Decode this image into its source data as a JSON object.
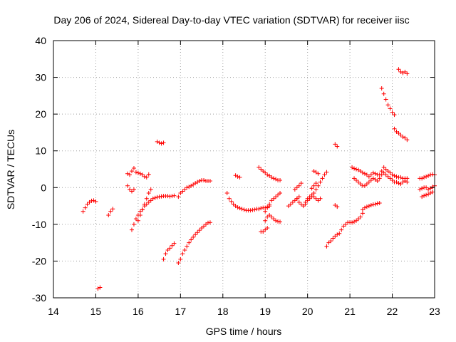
{
  "chart_data": {
    "type": "scatter",
    "title": "Day 206 of 2024, Sidereal Day-to-day VTEC variation (SDTVAR) for receiver iisc",
    "xlabel": "GPS time / hours",
    "ylabel": "SDTVAR / TECUs",
    "xlim": [
      14,
      23
    ],
    "ylim": [
      -30,
      40
    ],
    "xticks": [
      "14",
      "15",
      "16",
      "17",
      "18",
      "19",
      "20",
      "21",
      "22",
      "23"
    ],
    "yticks": [
      "-30",
      "-20",
      "-10",
      "0",
      "10",
      "20",
      "30",
      "40"
    ],
    "grid": true,
    "marker": "+",
    "color": "#ff0000",
    "segments": [
      {
        "x": [
          14.7,
          14.75,
          14.8,
          14.85,
          14.9,
          14.95,
          15.0
        ],
        "y": [
          -6.5,
          -5.5,
          -4.5,
          -4,
          -3.6,
          -3.5,
          -3.8
        ]
      },
      {
        "x": [
          15.05,
          15.1
        ],
        "y": [
          -27.5,
          -27.2
        ]
      },
      {
        "x": [
          15.3,
          15.35,
          15.4
        ],
        "y": [
          -7.5,
          -6.5,
          -5.8
        ]
      },
      {
        "x": [
          15.75,
          15.8,
          15.85,
          15.9
        ],
        "y": [
          3.8,
          3.5,
          4.5,
          5.3
        ]
      },
      {
        "x": [
          15.75,
          15.8,
          15.85,
          15.9
        ],
        "y": [
          0.5,
          -0.5,
          -1.0,
          -0.5
        ]
      },
      {
        "x": [
          15.85,
          15.9,
          15.95,
          16.0,
          16.05,
          16.1,
          16.15,
          16.2,
          16.25,
          16.3,
          16.35,
          16.4,
          16.45,
          16.5,
          16.55,
          16.6,
          16.65,
          16.7,
          16.75,
          16.8,
          16.85
        ],
        "y": [
          -11.5,
          -10,
          -8.5,
          -7.5,
          -6.5,
          -6,
          -5,
          -4.5,
          -4,
          -3.5,
          -3,
          -2.8,
          -2.6,
          -2.5,
          -2.4,
          -2.3,
          -2.3,
          -2.3,
          -2.4,
          -2.3,
          -2.2
        ]
      },
      {
        "x": [
          15.95,
          16.0,
          16.05,
          16.1,
          16.15,
          16.2,
          16.25
        ],
        "y": [
          4.2,
          4.0,
          3.8,
          3.5,
          3.0,
          2.8,
          3.6
        ]
      },
      {
        "x": [
          16.0,
          16.05,
          16.1,
          16.15,
          16.2,
          16.25,
          16.3
        ],
        "y": [
          -9,
          -7.5,
          -6,
          -4.5,
          -3,
          -1.5,
          -0.5
        ]
      },
      {
        "x": [
          16.45,
          16.5,
          16.55,
          16.6
        ],
        "y": [
          12.5,
          12.2,
          12.0,
          12.2
        ]
      },
      {
        "x": [
          16.6,
          16.65,
          16.7,
          16.75,
          16.8,
          16.85
        ],
        "y": [
          -19.5,
          -18,
          -17,
          -16.5,
          -15.8,
          -15.2
        ]
      },
      {
        "x": [
          16.95,
          17.0,
          17.05,
          17.1,
          17.15,
          17.2,
          17.25,
          17.3,
          17.35,
          17.4,
          17.45,
          17.5,
          17.55,
          17.6,
          17.65,
          17.7
        ],
        "y": [
          -20.5,
          -19.5,
          -18,
          -17,
          -16,
          -15,
          -14.2,
          -13.5,
          -12.8,
          -12.2,
          -11.6,
          -11,
          -10.5,
          -10,
          -9.6,
          -9.5
        ]
      },
      {
        "x": [
          16.95,
          17.0,
          17.05,
          17.1,
          17.15,
          17.2,
          17.25,
          17.3,
          17.35,
          17.4,
          17.45,
          17.5,
          17.55,
          17.6,
          17.65,
          17.7
        ],
        "y": [
          -2.5,
          -1.5,
          -1,
          -0.5,
          0,
          0.2,
          0.5,
          0.8,
          1.2,
          1.5,
          1.8,
          2.0,
          2.0,
          1.8,
          1.8,
          1.8
        ]
      },
      {
        "x": [
          18.1,
          18.15,
          18.2,
          18.25,
          18.3,
          18.35,
          18.4,
          18.45,
          18.5,
          18.55,
          18.6,
          18.65,
          18.7,
          18.75,
          18.8,
          18.85,
          18.9,
          18.95,
          19.0,
          19.05,
          19.1
        ],
        "y": [
          -1.5,
          -3,
          -3.8,
          -4.5,
          -5,
          -5.4,
          -5.6,
          -5.8,
          -6.0,
          -6.2,
          -6.2,
          -6.2,
          -6.1,
          -6.0,
          -5.8,
          -5.8,
          -5.6,
          -5.5,
          -5.5,
          -5.3,
          -5.0
        ]
      },
      {
        "x": [
          18.3,
          18.35,
          18.4
        ],
        "y": [
          3.3,
          3.0,
          2.8
        ]
      },
      {
        "x": [
          18.85,
          18.9,
          18.95,
          19.0,
          19.05,
          19.1,
          19.15,
          19.2,
          19.25,
          19.3,
          19.35
        ],
        "y": [
          5.5,
          5.0,
          4.5,
          4.0,
          3.5,
          3.2,
          2.8,
          2.5,
          2.3,
          2.0,
          2.0
        ]
      },
      {
        "x": [
          18.9,
          18.95,
          19.0,
          19.05
        ],
        "y": [
          -12,
          -12,
          -11.5,
          -11
        ]
      },
      {
        "x": [
          19.0,
          19.05,
          19.1,
          19.15,
          19.2,
          19.25,
          19.3,
          19.35
        ],
        "y": [
          -9,
          -8,
          -7.5,
          -8,
          -8.5,
          -9,
          -9.2,
          -9.3
        ]
      },
      {
        "x": [
          19.0,
          19.05,
          19.1,
          19.15,
          19.2,
          19.25,
          19.3,
          19.35
        ],
        "y": [
          -6.5,
          -5.5,
          -4.5,
          -3.5,
          -3,
          -2.5,
          -2,
          -1.5
        ]
      },
      {
        "x": [
          19.55,
          19.6,
          19.65,
          19.7,
          19.75,
          19.8
        ],
        "y": [
          -5,
          -4.5,
          -4,
          -3.5,
          -3,
          -2.5
        ]
      },
      {
        "x": [
          19.7,
          19.75,
          19.8,
          19.85
        ],
        "y": [
          -0.5,
          0,
          0.5,
          1.2
        ]
      },
      {
        "x": [
          19.75,
          19.8,
          19.85,
          19.9,
          19.95,
          20.0,
          20.05,
          20.1,
          20.15,
          20.2,
          20.25,
          20.3
        ],
        "y": [
          -3,
          -4,
          -4.5,
          -5,
          -4.5,
          -3.5,
          -3,
          -2.5,
          -2.5,
          -3,
          -3.5,
          -3
        ]
      },
      {
        "x": [
          19.95,
          20.0,
          20.05,
          20.1,
          20.15,
          20.2,
          20.25,
          20.3,
          20.35,
          20.4,
          20.45
        ],
        "y": [
          -4,
          -3,
          -2.5,
          -2,
          -1.5,
          -0.5,
          0.5,
          1.5,
          2.5,
          3.5,
          4.2
        ]
      },
      {
        "x": [
          20.1,
          20.15,
          20.2
        ],
        "y": [
          -0.2,
          0.5,
          1.2
        ]
      },
      {
        "x": [
          20.15,
          20.2,
          20.25
        ],
        "y": [
          4.5,
          4.2,
          3.8
        ]
      },
      {
        "x": [
          20.45,
          20.5,
          20.55,
          20.6,
          20.65,
          20.7,
          20.75,
          20.8,
          20.85,
          20.9,
          20.95,
          21.0,
          21.05,
          21.1,
          21.15,
          21.2,
          21.25,
          21.3
        ],
        "y": [
          -16,
          -15,
          -14.5,
          -13.8,
          -13.2,
          -12.8,
          -12.5,
          -11.5,
          -10.5,
          -10,
          -9.5,
          -9.5,
          -9.5,
          -9.3,
          -9,
          -8.5,
          -8,
          -7
        ]
      },
      {
        "x": [
          20.65,
          20.7
        ],
        "y": [
          11.8,
          11.2
        ]
      },
      {
        "x": [
          20.65,
          20.7
        ],
        "y": [
          -4.8,
          -5.2
        ]
      },
      {
        "x": [
          21.3,
          21.35,
          21.4,
          21.45,
          21.5,
          21.55,
          21.6,
          21.65,
          21.7
        ],
        "y": [
          -6,
          -5.5,
          -5.2,
          -5,
          -4.8,
          -4.6,
          -4.5,
          -4.3,
          -4.2
        ]
      },
      {
        "x": [
          21.05,
          21.1,
          21.15,
          21.2,
          21.25,
          21.3,
          21.35,
          21.4,
          21.45,
          21.5,
          21.55,
          21.6,
          21.65,
          21.7,
          21.75,
          21.8,
          21.85,
          21.9,
          21.95,
          22.0,
          22.05,
          22.1,
          22.15,
          22.2,
          22.25,
          22.3,
          22.35
        ],
        "y": [
          5.5,
          5.2,
          5,
          4.8,
          4.5,
          4.0,
          3.8,
          3.5,
          3.0,
          3.5,
          4.0,
          3.8,
          3.5,
          3.5,
          4.5,
          5.5,
          5.0,
          4.5,
          4.0,
          3.5,
          3.2,
          3.0,
          2.8,
          2.8,
          2.5,
          2.5,
          2.5
        ]
      },
      {
        "x": [
          21.1,
          21.15,
          21.2,
          21.25,
          21.3,
          21.35,
          21.4,
          21.45,
          21.5,
          21.55,
          21.6,
          21.65,
          21.7,
          21.75,
          21.8,
          21.85,
          21.9,
          21.95,
          22.0,
          22.05,
          22.1,
          22.15,
          22.2,
          22.25,
          22.3,
          22.35
        ],
        "y": [
          2.5,
          2.0,
          1.5,
          1.0,
          0.5,
          0.5,
          1.0,
          1.5,
          2.0,
          2.5,
          2.2,
          1.8,
          2.5,
          3.5,
          4.0,
          3.5,
          3.0,
          2.5,
          2.0,
          1.5,
          1.5,
          1.2,
          1.0,
          1.5,
          1.8,
          1.5
        ]
      },
      {
        "x": [
          21.75,
          21.8,
          21.85,
          21.9,
          21.95,
          22.0,
          22.05
        ],
        "y": [
          27,
          25.5,
          24,
          22.5,
          21.5,
          20.5,
          19.8
        ]
      },
      {
        "x": [
          22.05,
          22.1,
          22.15,
          22.2,
          22.25,
          22.3,
          22.35
        ],
        "y": [
          16,
          15.2,
          14.8,
          14.3,
          13.8,
          13.5,
          13.0
        ]
      },
      {
        "x": [
          22.15,
          22.2,
          22.25,
          22.3,
          22.35
        ],
        "y": [
          32.2,
          31.5,
          31.2,
          31.5,
          31.0
        ]
      },
      {
        "x": [
          22.65,
          22.7,
          22.75,
          22.8,
          22.85,
          22.9,
          22.95,
          23.0
        ],
        "y": [
          2.5,
          2.5,
          2.8,
          3.0,
          3.2,
          3.5,
          3.6,
          3.5
        ]
      },
      {
        "x": [
          22.65,
          22.7,
          22.75,
          22.8,
          22.85,
          22.9,
          22.95,
          23.0
        ],
        "y": [
          -0.5,
          -0.2,
          0,
          0,
          -0.5,
          -0.2,
          0.2,
          0.5
        ]
      },
      {
        "x": [
          22.7,
          22.75,
          22.8,
          22.85,
          22.9,
          22.95
        ],
        "y": [
          -2.5,
          -2.2,
          -2.0,
          -1.8,
          -1.5,
          -1.2
        ]
      }
    ]
  }
}
